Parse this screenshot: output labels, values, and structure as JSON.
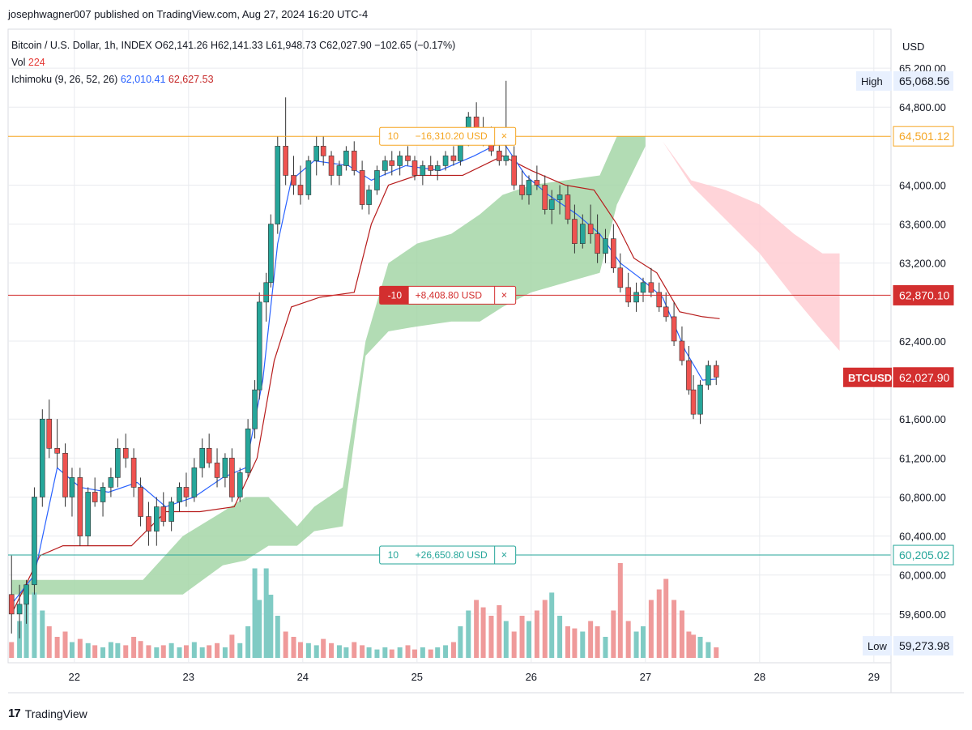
{
  "header": {
    "published": "josephwagner007 published on TradingView.com, Aug 27, 2024 16:20 UTC-4"
  },
  "legend": {
    "symbol_line": "Bitcoin / U.S. Dollar, 1h, INDEX  O62,141.26  H62,141.33  L61,948.73  C62,027.90  −102.65 (−0.17%)",
    "vol_label": "Vol",
    "vol_value": "224",
    "ichimoku_label": "Ichimoku (9, 26, 52, 26)",
    "ichimoku_conv": "62,010.41",
    "ichimoku_base": "62,627.53"
  },
  "footer": {
    "brand": "TradingView",
    "logo_text": "17"
  },
  "colors": {
    "up": "#26a69a",
    "down": "#ef5350",
    "conversion": "#2962ff",
    "base": "#b71c1c",
    "cloud_bull": "#a5d6a7",
    "cloud_bear": "#ffcdd2",
    "vol_up": "#80cbc4",
    "vol_down": "#ef9a9a",
    "hline_orange": "#f5a623",
    "hline_red": "#d32f2f",
    "hline_green": "#26a69a"
  },
  "chart_data": {
    "type": "candlestick",
    "currency_label": "USD",
    "ylim": [
      59100,
      65600
    ],
    "y_ticks": [
      "65,200.00",
      "64,800.00",
      "64,000.00",
      "63,600.00",
      "63,200.00",
      "62,400.00",
      "61,600.00",
      "61,200.00",
      "60,800.00",
      "60,400.00",
      "60,000.00",
      "59,600.00"
    ],
    "y_tick_values": [
      65200,
      64800,
      64000,
      63600,
      63200,
      62400,
      61600,
      61200,
      60800,
      60400,
      60000,
      59600
    ],
    "x_ticks": [
      "22",
      "23",
      "24",
      "25",
      "26",
      "27",
      "28",
      "29"
    ],
    "x_range_days": [
      21.42,
      29.15
    ],
    "price_labels": [
      {
        "label": "High",
        "value": "65,068.56",
        "price": 65068.56,
        "style": "plain"
      },
      {
        "label": "",
        "value": "64,501.12",
        "price": 64501.12,
        "style": "orange"
      },
      {
        "label": "",
        "value": "62,870.10",
        "price": 62870.1,
        "style": "red"
      },
      {
        "label": "BTCUSD",
        "value": "62,027.90",
        "price": 62027.9,
        "style": "red"
      },
      {
        "label": "",
        "value": "60,205.02",
        "price": 60205.02,
        "style": "green"
      },
      {
        "label": "Low",
        "value": "59,273.98",
        "price": 59273.98,
        "style": "plain"
      }
    ],
    "horizontal_lines": [
      {
        "price": 64501.12,
        "qty": "10",
        "pnl": "−16,310.20 USD",
        "close": "×",
        "color": "orange",
        "label_day": 24.85
      },
      {
        "price": 62870.1,
        "qty": "-10",
        "pnl": "+8,408.80 USD",
        "close": "×",
        "color": "red",
        "label_day": 24.85
      },
      {
        "price": 60205.02,
        "qty": "10",
        "pnl": "+26,650.80 USD",
        "close": "×",
        "color": "green",
        "label_day": 24.85
      }
    ],
    "ohlc": [
      [
        21.45,
        59800,
        60200,
        59400,
        59600
      ],
      [
        21.52,
        59600,
        59900,
        59350,
        59700
      ],
      [
        21.58,
        59700,
        59950,
        59500,
        59900
      ],
      [
        21.65,
        59900,
        60900,
        59800,
        60800
      ],
      [
        21.72,
        60800,
        61700,
        60700,
        61600
      ],
      [
        21.78,
        61600,
        61800,
        61200,
        61300
      ],
      [
        21.85,
        61300,
        61600,
        61100,
        61250
      ],
      [
        21.92,
        61250,
        61350,
        60700,
        60800
      ],
      [
        21.98,
        60800,
        61100,
        60600,
        61000
      ],
      [
        22.05,
        61000,
        61100,
        60300,
        60400
      ],
      [
        22.12,
        60400,
        60900,
        60300,
        60850
      ],
      [
        22.18,
        60850,
        61000,
        60700,
        60750
      ],
      [
        22.25,
        60750,
        60950,
        60600,
        60900
      ],
      [
        22.32,
        60900,
        61100,
        60800,
        61000
      ],
      [
        22.38,
        61000,
        61400,
        60900,
        61300
      ],
      [
        22.45,
        61300,
        61450,
        61100,
        61200
      ],
      [
        22.52,
        61200,
        61300,
        60800,
        60900
      ],
      [
        22.58,
        60900,
        61000,
        60500,
        60600
      ],
      [
        22.65,
        60600,
        60750,
        60300,
        60450
      ],
      [
        22.72,
        60450,
        60800,
        60300,
        60700
      ],
      [
        22.78,
        60700,
        60850,
        60500,
        60550
      ],
      [
        22.85,
        60550,
        60800,
        60450,
        60750
      ],
      [
        22.92,
        60750,
        60950,
        60650,
        60900
      ],
      [
        22.98,
        60900,
        61050,
        60700,
        60800
      ],
      [
        23.05,
        60800,
        61200,
        60750,
        61100
      ],
      [
        23.12,
        61100,
        61400,
        61000,
        61300
      ],
      [
        23.18,
        61300,
        61450,
        61100,
        61150
      ],
      [
        23.25,
        61150,
        61300,
        60900,
        61000
      ],
      [
        23.32,
        61000,
        61250,
        60900,
        61200
      ],
      [
        23.38,
        61200,
        61300,
        60750,
        60800
      ],
      [
        23.45,
        60800,
        61100,
        60750,
        61050
      ],
      [
        23.52,
        61050,
        61600,
        61000,
        61500
      ],
      [
        23.58,
        61500,
        62000,
        61400,
        61900
      ],
      [
        23.62,
        61900,
        62900,
        61800,
        62800
      ],
      [
        23.68,
        62800,
        63100,
        62600,
        63000
      ],
      [
        23.72,
        63000,
        63700,
        62950,
        63600
      ],
      [
        23.78,
        63600,
        64500,
        63500,
        64400
      ],
      [
        23.85,
        64400,
        64900,
        64000,
        64100
      ],
      [
        23.92,
        64100,
        64300,
        63900,
        64000
      ],
      [
        23.98,
        64000,
        64200,
        63800,
        63900
      ],
      [
        24.05,
        63900,
        64300,
        63850,
        64250
      ],
      [
        24.12,
        64250,
        64500,
        64100,
        64400
      ],
      [
        24.18,
        64400,
        64500,
        64200,
        64300
      ],
      [
        24.25,
        64300,
        64350,
        64000,
        64100
      ],
      [
        24.32,
        64100,
        64250,
        64000,
        64200
      ],
      [
        24.38,
        64200,
        64400,
        64150,
        64350
      ],
      [
        24.45,
        64350,
        64450,
        64100,
        64150
      ],
      [
        24.52,
        64150,
        64250,
        63750,
        63800
      ],
      [
        24.58,
        63800,
        64000,
        63700,
        63950
      ],
      [
        24.65,
        63950,
        64200,
        63900,
        64150
      ],
      [
        24.72,
        64150,
        64300,
        64100,
        64250
      ],
      [
        24.78,
        64250,
        64350,
        64100,
        64200
      ],
      [
        24.85,
        64200,
        64350,
        64100,
        64300
      ],
      [
        24.92,
        64300,
        64400,
        64200,
        64250
      ],
      [
        24.98,
        64250,
        64300,
        64050,
        64100
      ],
      [
        25.05,
        64100,
        64250,
        64000,
        64200
      ],
      [
        25.12,
        64200,
        64300,
        64100,
        64150
      ],
      [
        25.18,
        64150,
        64250,
        64050,
        64200
      ],
      [
        25.25,
        64200,
        64350,
        64150,
        64300
      ],
      [
        25.32,
        64300,
        64400,
        64200,
        64250
      ],
      [
        25.38,
        64250,
        64550,
        64200,
        64500
      ],
      [
        25.45,
        64500,
        64750,
        64400,
        64700
      ],
      [
        25.52,
        64700,
        64850,
        64500,
        64550
      ],
      [
        25.58,
        64550,
        64700,
        64400,
        64450
      ],
      [
        25.65,
        64450,
        64600,
        64300,
        64350
      ],
      [
        25.72,
        64350,
        64500,
        64200,
        64250
      ],
      [
        25.78,
        64250,
        65070,
        64200,
        64300
      ],
      [
        25.85,
        64300,
        64400,
        63950,
        64000
      ],
      [
        25.92,
        64000,
        64150,
        63850,
        63900
      ],
      [
        25.98,
        63900,
        64100,
        63800,
        64050
      ],
      [
        26.05,
        64050,
        64200,
        63950,
        64000
      ],
      [
        26.12,
        64000,
        64100,
        63700,
        63750
      ],
      [
        26.18,
        63750,
        63950,
        63600,
        63850
      ],
      [
        26.25,
        63850,
        64000,
        63700,
        63900
      ],
      [
        26.32,
        63900,
        64000,
        63600,
        63650
      ],
      [
        26.38,
        63650,
        63800,
        63300,
        63400
      ],
      [
        26.45,
        63400,
        63700,
        63350,
        63600
      ],
      [
        26.52,
        63600,
        63800,
        63400,
        63500
      ],
      [
        26.58,
        63500,
        63700,
        63200,
        63300
      ],
      [
        26.65,
        63300,
        63550,
        63200,
        63450
      ],
      [
        26.72,
        63450,
        63600,
        63100,
        63150
      ],
      [
        26.78,
        63150,
        63300,
        62900,
        62950
      ],
      [
        26.85,
        62950,
        63100,
        62750,
        62800
      ],
      [
        26.92,
        62800,
        63000,
        62700,
        62900
      ],
      [
        26.98,
        62900,
        63050,
        62800,
        63000
      ],
      [
        27.05,
        63000,
        63150,
        62850,
        62900
      ],
      [
        27.12,
        62900,
        63000,
        62700,
        62750
      ],
      [
        27.18,
        62750,
        62900,
        62600,
        62650
      ],
      [
        27.25,
        62650,
        62800,
        62350,
        62400
      ],
      [
        27.32,
        62400,
        62550,
        62150,
        62200
      ],
      [
        27.38,
        62200,
        62350,
        61850,
        61900
      ],
      [
        27.42,
        61900,
        62050,
        61600,
        61650
      ],
      [
        27.48,
        61650,
        62000,
        61550,
        61950
      ],
      [
        27.55,
        61950,
        62200,
        61900,
        62150
      ],
      [
        27.62,
        62150,
        62200,
        61950,
        62030
      ]
    ],
    "volume": [
      0.15,
      0.35,
      0.55,
      0.62,
      0.45,
      0.3,
      0.2,
      0.25,
      0.15,
      0.18,
      0.14,
      0.12,
      0.1,
      0.15,
      0.14,
      0.12,
      0.2,
      0.16,
      0.12,
      0.1,
      0.12,
      0.14,
      0.1,
      0.12,
      0.15,
      0.1,
      0.12,
      0.14,
      0.1,
      0.22,
      0.14,
      0.3,
      0.85,
      0.55,
      0.85,
      0.6,
      0.4,
      0.25,
      0.2,
      0.15,
      0.14,
      0.12,
      0.18,
      0.14,
      0.12,
      0.1,
      0.15,
      0.12,
      0.1,
      0.08,
      0.1,
      0.08,
      0.1,
      0.12,
      0.08,
      0.1,
      0.08,
      0.1,
      0.12,
      0.15,
      0.3,
      0.45,
      0.55,
      0.48,
      0.4,
      0.5,
      0.35,
      0.25,
      0.4,
      0.35,
      0.45,
      0.55,
      0.62,
      0.4,
      0.3,
      0.28,
      0.25,
      0.35,
      0.3,
      0.2,
      0.45,
      0.9,
      0.35,
      0.25,
      0.3,
      0.55,
      0.65,
      0.75,
      0.55,
      0.45,
      0.25,
      0.22,
      0.2,
      0.15
    ],
    "conversion_line": [
      [
        21.45,
        59700
      ],
      [
        21.65,
        60000
      ],
      [
        21.85,
        61100
      ],
      [
        22.05,
        60900
      ],
      [
        22.3,
        60850
      ],
      [
        22.55,
        60950
      ],
      [
        22.8,
        60700
      ],
      [
        23.05,
        60800
      ],
      [
        23.3,
        61000
      ],
      [
        23.5,
        61100
      ],
      [
        23.65,
        62000
      ],
      [
        23.78,
        63400
      ],
      [
        23.9,
        64050
      ],
      [
        24.1,
        64250
      ],
      [
        24.4,
        64200
      ],
      [
        24.6,
        64050
      ],
      [
        24.9,
        64200
      ],
      [
        25.2,
        64150
      ],
      [
        25.5,
        64300
      ],
      [
        25.75,
        64450
      ],
      [
        25.95,
        64100
      ],
      [
        26.15,
        63900
      ],
      [
        26.4,
        63700
      ],
      [
        26.6,
        63500
      ],
      [
        26.78,
        63200
      ],
      [
        26.95,
        63050
      ],
      [
        27.15,
        62850
      ],
      [
        27.35,
        62300
      ],
      [
        27.5,
        62000
      ],
      [
        27.62,
        62010
      ]
    ],
    "base_line": [
      [
        21.45,
        59600
      ],
      [
        21.7,
        60200
      ],
      [
        21.9,
        60300
      ],
      [
        22.2,
        60300
      ],
      [
        22.5,
        60300
      ],
      [
        22.8,
        60650
      ],
      [
        23.1,
        60650
      ],
      [
        23.4,
        60700
      ],
      [
        23.6,
        61200
      ],
      [
        23.75,
        62200
      ],
      [
        23.9,
        62750
      ],
      [
        24.15,
        62850
      ],
      [
        24.45,
        62900
      ],
      [
        24.6,
        63600
      ],
      [
        24.75,
        64000
      ],
      [
        25.0,
        64100
      ],
      [
        25.4,
        64100
      ],
      [
        25.75,
        64300
      ],
      [
        26.0,
        64150
      ],
      [
        26.3,
        64000
      ],
      [
        26.55,
        63950
      ],
      [
        26.75,
        63600
      ],
      [
        26.9,
        63250
      ],
      [
        27.1,
        63100
      ],
      [
        27.3,
        62700
      ],
      [
        27.5,
        62650
      ],
      [
        27.65,
        62630
      ]
    ],
    "cloud_bull": {
      "top": [
        [
          21.45,
          59950
        ],
        [
          21.6,
          59950
        ],
        [
          22.6,
          59950
        ],
        [
          22.95,
          60400
        ],
        [
          23.3,
          60650
        ],
        [
          23.5,
          60800
        ],
        [
          23.7,
          60800
        ],
        [
          23.95,
          60500
        ],
        [
          24.1,
          60700
        ],
        [
          24.35,
          60900
        ],
        [
          24.55,
          62400
        ],
        [
          24.75,
          63200
        ],
        [
          25.0,
          63400
        ],
        [
          25.3,
          63500
        ],
        [
          25.55,
          63700
        ],
        [
          25.75,
          63900
        ],
        [
          26.0,
          64000
        ],
        [
          26.3,
          64050
        ],
        [
          26.6,
          64100
        ],
        [
          26.75,
          64500
        ],
        [
          27.0,
          64500
        ]
      ],
      "bottom": [
        [
          21.45,
          59800
        ],
        [
          21.6,
          59800
        ],
        [
          22.6,
          59800
        ],
        [
          22.95,
          59800
        ],
        [
          23.3,
          60100
        ],
        [
          23.5,
          60150
        ],
        [
          23.7,
          60300
        ],
        [
          23.95,
          60300
        ],
        [
          24.1,
          60450
        ],
        [
          24.35,
          60500
        ],
        [
          24.55,
          62250
        ],
        [
          24.75,
          62500
        ],
        [
          25.0,
          62550
        ],
        [
          25.3,
          62600
        ],
        [
          25.55,
          62600
        ],
        [
          25.75,
          62750
        ],
        [
          26.0,
          62900
        ],
        [
          26.3,
          63000
        ],
        [
          26.6,
          63100
        ],
        [
          26.75,
          63800
        ],
        [
          27.0,
          64400
        ]
      ]
    },
    "cloud_bear": {
      "top": [
        [
          27.15,
          64450
        ],
        [
          27.4,
          64050
        ],
        [
          27.7,
          63950
        ],
        [
          28.0,
          63800
        ],
        [
          28.3,
          63500
        ],
        [
          28.55,
          63300
        ],
        [
          28.7,
          63300
        ]
      ],
      "bottom": [
        [
          27.15,
          64450
        ],
        [
          27.4,
          64000
        ],
        [
          27.7,
          63650
        ],
        [
          28.0,
          63300
        ],
        [
          28.3,
          62850
        ],
        [
          28.55,
          62500
        ],
        [
          28.7,
          62300
        ]
      ]
    }
  }
}
